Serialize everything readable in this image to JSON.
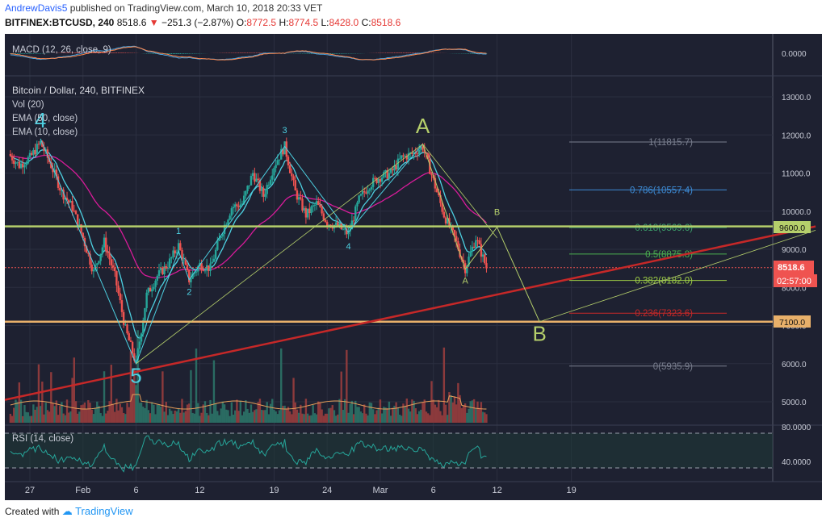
{
  "header": {
    "author": "AndrewDavis5",
    "published": "published on TradingView.com, March 10, 2018 20:33 VET",
    "symbol": "BITFINEX:BTCUSD, 240",
    "last": "8518.6",
    "change": "−251.3 (−2.87%)",
    "o_label": "O:",
    "o": "8772.5",
    "h_label": "H:",
    "h": "8774.5",
    "l_label": "L:",
    "l": "8428.0",
    "c_label": "C:",
    "c": "8518.6"
  },
  "footer": {
    "created_with": "Created with",
    "brand": "TradingView"
  },
  "colors": {
    "background": "#1e2131",
    "grid": "#2b2f40",
    "up": "#26a69a",
    "down": "#ef5350",
    "ema50": "#d81b9a",
    "ema10": "#4dd0e1",
    "support": "#e8b06a",
    "resistance": "#b5cf6b",
    "trend": "#c62828"
  },
  "panes": {
    "macd": {
      "label": "MACD (12, 26, close, 9)",
      "tick": "0.0000"
    },
    "price": {
      "title": "Bitcoin / Dollar, 240, BITFINEX",
      "indicators": [
        "Vol (20)",
        "EMA (50, close)",
        "EMA (10, close)"
      ],
      "last_price_label": "8518.6",
      "countdown_label": "02:57:00",
      "level_9600_label": "9600.0",
      "level_7100_label": "7100.0"
    },
    "rsi": {
      "label": "RSI (14, close)",
      "ticks": [
        "80.0000",
        "40.0000"
      ]
    }
  },
  "chart_data": {
    "type": "candlestick",
    "symbol": "BTCUSD",
    "interval": "240",
    "ylim": [
      4700,
      13400
    ],
    "yticks": [
      "13000.0",
      "12000.0",
      "11000.0",
      "10000.0",
      "9000.0",
      "8000.0",
      "7000.0",
      "6000.0",
      "5000.0"
    ],
    "xticks": [
      "27",
      "Feb",
      "6",
      "12",
      "19",
      "24",
      "Mar",
      "6",
      "12",
      "19"
    ],
    "price_path": [
      [
        "2018-01-25",
        11500
      ],
      [
        "2018-01-26",
        11200
      ],
      [
        "2018-01-27",
        11400
      ],
      [
        "2018-01-28",
        11800
      ],
      [
        "2018-01-29",
        11200
      ],
      [
        "2018-01-30",
        10500
      ],
      [
        "2018-01-31",
        10100
      ],
      [
        "2018-02-01",
        9300
      ],
      [
        "2018-02-02",
        8400
      ],
      [
        "2018-02-03",
        9200
      ],
      [
        "2018-02-04",
        8300
      ],
      [
        "2018-02-05",
        6900
      ],
      [
        "2018-02-06",
        6000
      ],
      [
        "2018-02-07",
        7800
      ],
      [
        "2018-02-08",
        8300
      ],
      [
        "2018-02-09",
        8600
      ],
      [
        "2018-02-10",
        9100
      ],
      [
        "2018-02-11",
        8200
      ],
      [
        "2018-02-12",
        8600
      ],
      [
        "2018-02-13",
        8500
      ],
      [
        "2018-02-14",
        9400
      ],
      [
        "2018-02-15",
        10100
      ],
      [
        "2018-02-16",
        10200
      ],
      [
        "2018-02-17",
        11000
      ],
      [
        "2018-02-18",
        10400
      ],
      [
        "2018-02-19",
        11200
      ],
      [
        "2018-02-20",
        11700
      ],
      [
        "2018-02-21",
        10500
      ],
      [
        "2018-02-22",
        9900
      ],
      [
        "2018-02-23",
        10200
      ],
      [
        "2018-02-24",
        9700
      ],
      [
        "2018-02-25",
        9600
      ],
      [
        "2018-02-26",
        9400
      ],
      [
        "2018-02-27",
        10300
      ],
      [
        "2018-02-28",
        10700
      ],
      [
        "2018-03-01",
        10900
      ],
      [
        "2018-03-02",
        11000
      ],
      [
        "2018-03-03",
        11400
      ],
      [
        "2018-03-04",
        11500
      ],
      [
        "2018-03-05",
        11700
      ],
      [
        "2018-03-06",
        10800
      ],
      [
        "2018-03-07",
        9900
      ],
      [
        "2018-03-08",
        9300
      ],
      [
        "2018-03-09",
        8500
      ],
      [
        "2018-03-10",
        9300
      ],
      [
        "2018-03-11",
        8518.6
      ]
    ],
    "horizontal_levels": [
      {
        "price": 9600,
        "label": "9600.0"
      },
      {
        "price": 7100,
        "label": "7100.0"
      }
    ],
    "current_price": 8518.6,
    "fibonacci": [
      {
        "ratio": "1",
        "label": "1(11815.7)",
        "price": 11815.7,
        "color": "#7a7f8f"
      },
      {
        "ratio": "0.786",
        "label": "0.786(10557.4)",
        "price": 10557.4,
        "color": "#3d8bd5"
      },
      {
        "ratio": "0.618",
        "label": "0.618(9569.6)",
        "price": 9569.6,
        "color": "#3ca06b"
      },
      {
        "ratio": "0.5",
        "label": "0.5(8875.8)",
        "price": 8875.8,
        "color": "#4caf50"
      },
      {
        "ratio": "0.382",
        "label": "0.382(8182.0)",
        "price": 8182.0,
        "color": "#9ccc45"
      },
      {
        "ratio": "0.236",
        "label": "0.236(7323.6)",
        "price": 7323.6,
        "color": "#c62828"
      },
      {
        "ratio": "0",
        "label": "0(5935.9)",
        "price": 5935.9,
        "color": "#7a7f8f"
      }
    ],
    "wave_labels": [
      {
        "text": "4",
        "date": "2018-01-28",
        "price": 12200
      },
      {
        "text": "5",
        "date": "2018-02-06",
        "price": 5500
      },
      {
        "text": "1",
        "date": "2018-02-10",
        "price": 9400
      },
      {
        "text": "2",
        "date": "2018-02-11",
        "price": 7800
      },
      {
        "text": "3",
        "date": "2018-02-20",
        "price": 12050
      },
      {
        "text": "4",
        "date": "2018-02-26",
        "price": 9000
      },
      {
        "text": "A",
        "date": "2018-03-05",
        "price": 12050
      },
      {
        "text": "A",
        "date": "2018-03-09",
        "price": 8100
      },
      {
        "text": "B",
        "date": "2018-03-12",
        "price": 9900
      },
      {
        "text": "B",
        "date": "2018-03-16",
        "price": 6600
      }
    ]
  }
}
